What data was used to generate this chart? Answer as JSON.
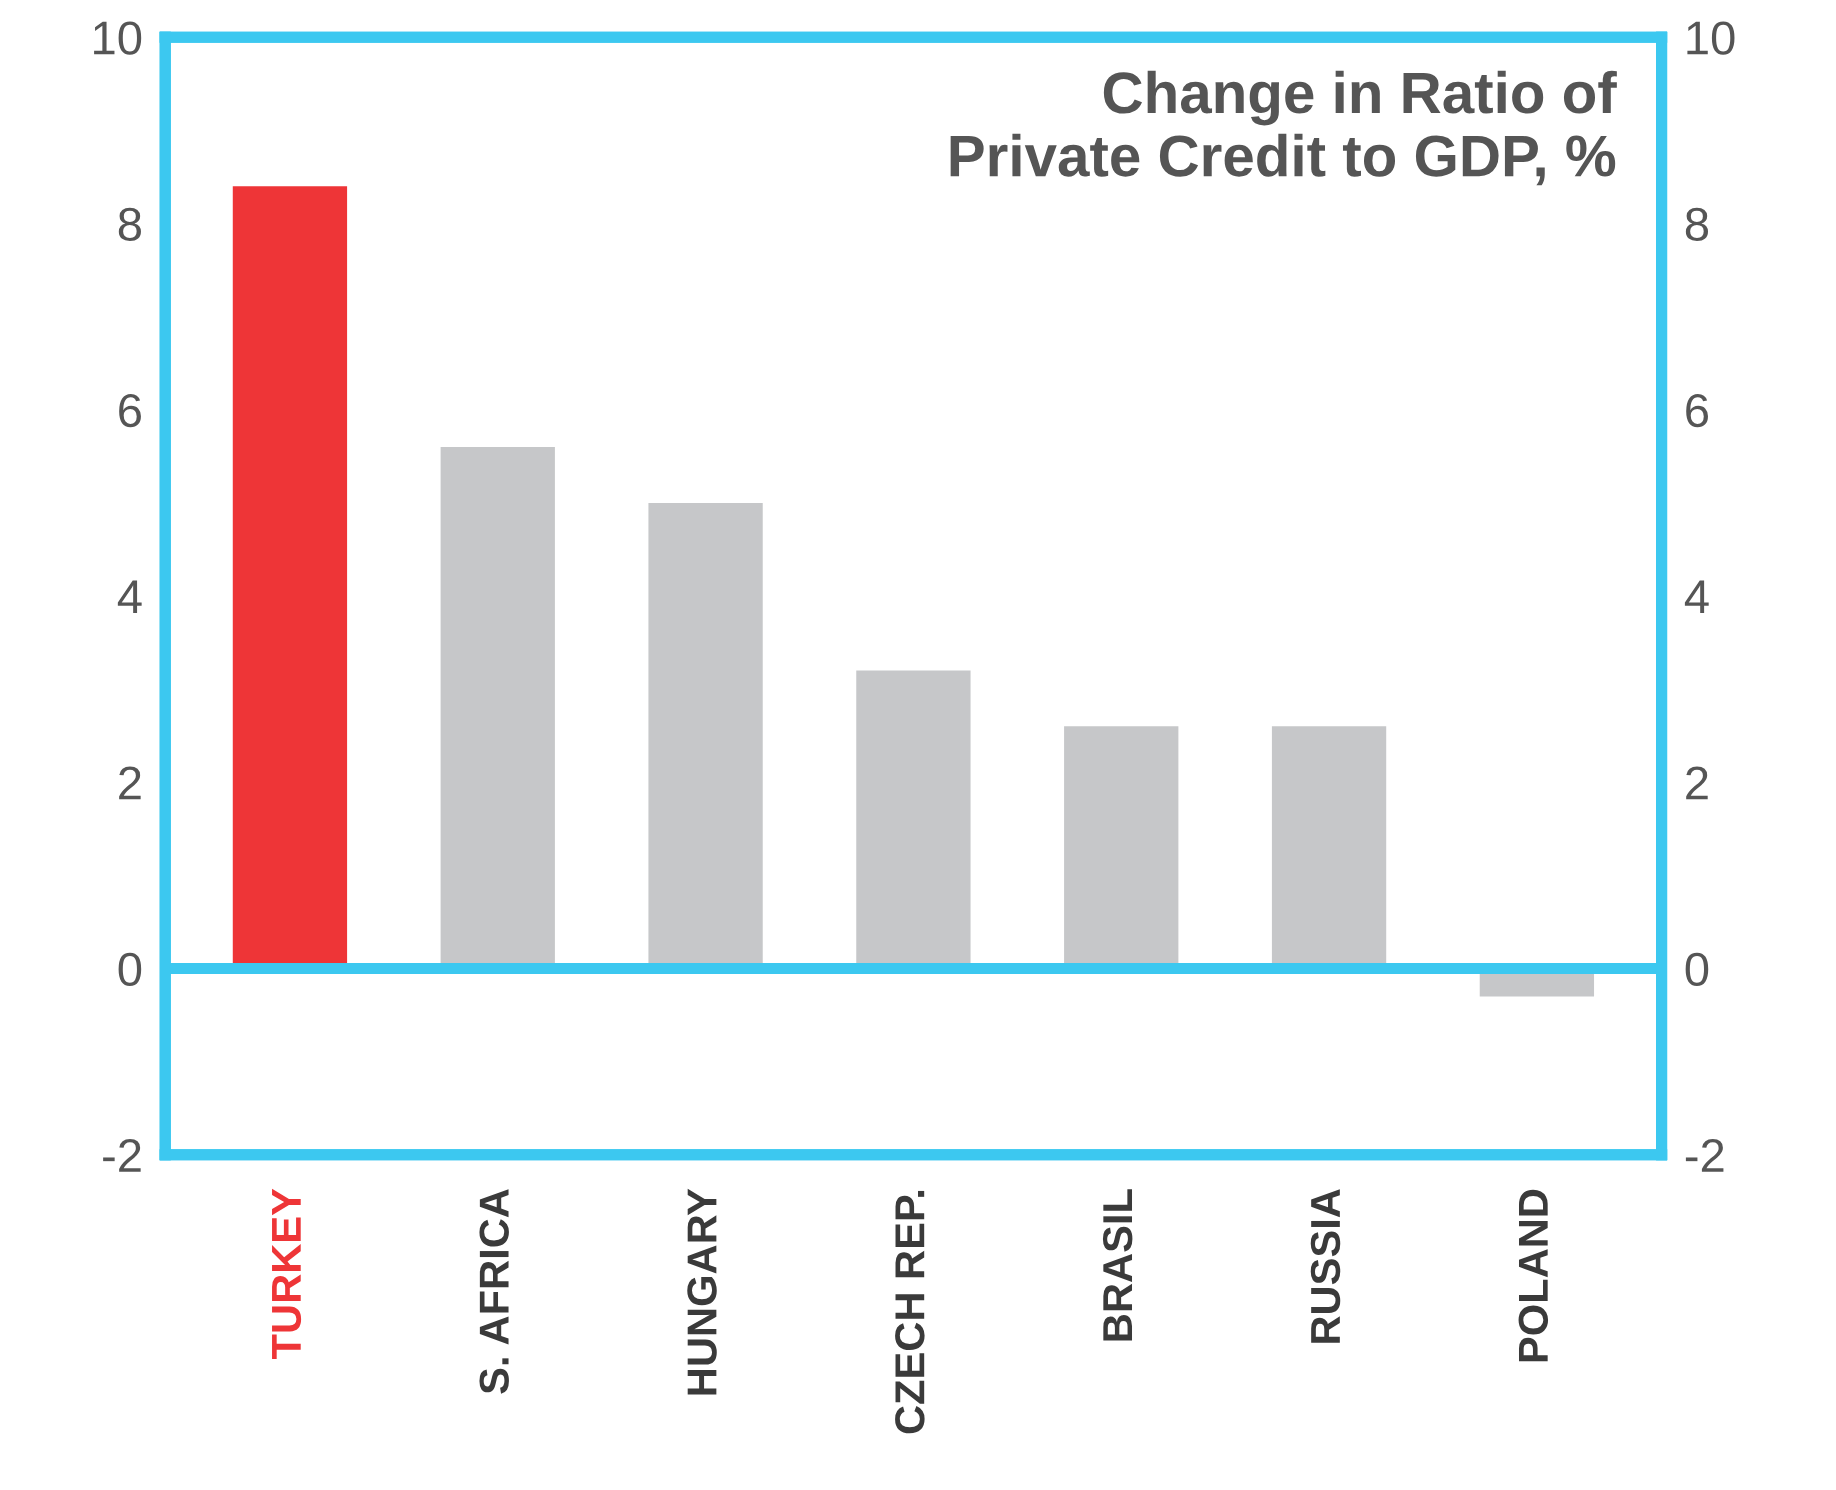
{
  "chart_data": {
    "type": "bar",
    "title": "Change in Ratio of\nPrivate Credit to GDP, %",
    "categories": [
      "TURKEY",
      "S. AFRICA",
      "HUNGARY",
      "CZECH REP.",
      "BRASIL",
      "RUSSIA",
      "POLAND"
    ],
    "values": [
      8.4,
      5.6,
      5.0,
      3.2,
      2.6,
      2.6,
      -0.3
    ],
    "colors": [
      "#ee3537",
      "#c6c7c9",
      "#c6c7c9",
      "#c6c7c9",
      "#c6c7c9",
      "#c6c7c9",
      "#c6c7c9"
    ],
    "ylim": [
      -2,
      10
    ],
    "yticks": [
      -2,
      0,
      2,
      4,
      6,
      8,
      10
    ],
    "y2lim": [
      -2,
      10
    ],
    "y2ticks": [
      -2,
      0,
      2,
      4,
      6,
      8,
      10
    ],
    "ref_lines": [
      {
        "axis": "y",
        "value": 0,
        "color": "#3cc8f0"
      }
    ],
    "grid": false,
    "legend": false
  }
}
